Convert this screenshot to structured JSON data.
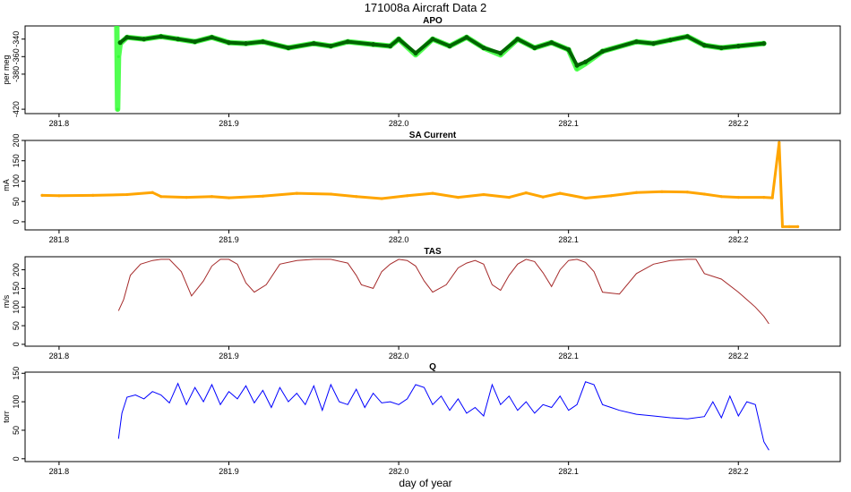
{
  "figure": {
    "title": "171008a   Aircraft Data 2",
    "xlabel": "day of year"
  },
  "chart_data": [
    {
      "type": "scatter",
      "title": "APO",
      "ylabel": "per meg",
      "xlim": [
        281.78,
        282.26
      ],
      "ylim": [
        -425,
        -325
      ],
      "xticks": [
        281.8,
        281.9,
        282.0,
        282.1,
        282.2
      ],
      "yticks": [
        -340,
        -360,
        -380,
        -420
      ],
      "series": [
        {
          "color": "#33ff33",
          "style": "raw",
          "x": [
            281.834,
            281.8345,
            281.835,
            281.836,
            281.84,
            281.85,
            281.86,
            281.87,
            281.88,
            281.89,
            281.9,
            281.91,
            281.92,
            281.935,
            281.95,
            281.96,
            281.97,
            281.985,
            281.995,
            282.0,
            282.01,
            282.02,
            282.03,
            282.04,
            282.05,
            282.06,
            282.07,
            282.08,
            282.09,
            282.1,
            282.105,
            282.11,
            282.12,
            282.14,
            282.15,
            282.16,
            282.17,
            282.18,
            282.19,
            282.2,
            282.215
          ],
          "y": [
            -325,
            -420,
            -360,
            -345,
            -338,
            -340,
            -337,
            -340,
            -343,
            -338,
            -344,
            -345,
            -343,
            -350,
            -345,
            -348,
            -343,
            -346,
            -348,
            -340,
            -358,
            -340,
            -348,
            -338,
            -350,
            -358,
            -340,
            -350,
            -344,
            -352,
            -374,
            -368,
            -354,
            -343,
            -345,
            -341,
            -337,
            -347,
            -350,
            -348,
            -345
          ]
        },
        {
          "color": "#006400",
          "style": "averaged",
          "x": [
            281.836,
            281.84,
            281.85,
            281.86,
            281.87,
            281.88,
            281.89,
            281.9,
            281.91,
            281.92,
            281.935,
            281.95,
            281.96,
            281.97,
            281.985,
            281.995,
            282.0,
            282.01,
            282.02,
            282.03,
            282.04,
            282.05,
            282.06,
            282.07,
            282.08,
            282.09,
            282.1,
            282.105,
            282.11,
            282.12,
            282.14,
            282.15,
            282.16,
            282.17,
            282.18,
            282.19,
            282.2,
            282.215
          ],
          "y": [
            -344,
            -338,
            -340,
            -337,
            -340,
            -343,
            -338,
            -344,
            -345,
            -343,
            -350,
            -345,
            -348,
            -343,
            -346,
            -348,
            -340,
            -356,
            -340,
            -348,
            -338,
            -350,
            -356,
            -340,
            -350,
            -344,
            -352,
            -370,
            -366,
            -354,
            -343,
            -345,
            -341,
            -337,
            -347,
            -350,
            -348,
            -345
          ]
        }
      ]
    },
    {
      "type": "scatter",
      "title": "SA Current",
      "ylabel": "mA",
      "xlim": [
        281.78,
        282.26
      ],
      "ylim": [
        -20,
        200
      ],
      "xticks": [
        281.8,
        281.9,
        282.0,
        282.1,
        282.2
      ],
      "yticks": [
        0,
        50,
        100,
        150,
        200
      ],
      "series": [
        {
          "color": "#ffa500",
          "x": [
            281.79,
            281.8,
            281.82,
            281.84,
            281.855,
            281.86,
            281.875,
            281.89,
            281.9,
            281.92,
            281.94,
            281.96,
            281.975,
            281.99,
            282.005,
            282.02,
            282.035,
            282.05,
            282.065,
            282.075,
            282.085,
            282.095,
            282.11,
            282.125,
            282.14,
            282.155,
            282.17,
            282.18,
            282.19,
            282.2,
            282.215,
            282.22,
            282.224,
            282.226,
            282.23,
            282.235
          ],
          "y": [
            65,
            64,
            65,
            67,
            72,
            62,
            60,
            62,
            59,
            63,
            70,
            68,
            62,
            57,
            64,
            70,
            60,
            67,
            60,
            71,
            61,
            70,
            58,
            64,
            72,
            74,
            73,
            68,
            62,
            60,
            60,
            59,
            195,
            -12,
            -12,
            -12
          ]
        }
      ]
    },
    {
      "type": "line",
      "title": "TAS",
      "ylabel": "m/s",
      "xlim": [
        281.78,
        282.26
      ],
      "ylim": [
        -5,
        235
      ],
      "xticks": [
        281.8,
        281.9,
        282.0,
        282.1,
        282.2
      ],
      "yticks": [
        0,
        50,
        100,
        150,
        200
      ],
      "series": [
        {
          "color": "#a52a2a",
          "x": [
            281.835,
            281.838,
            281.842,
            281.848,
            281.855,
            281.86,
            281.865,
            281.872,
            281.878,
            281.885,
            281.89,
            281.895,
            281.9,
            281.905,
            281.91,
            281.915,
            281.922,
            281.93,
            281.94,
            281.95,
            281.96,
            281.97,
            281.975,
            281.978,
            281.985,
            281.99,
            281.995,
            282.0,
            282.005,
            282.01,
            282.015,
            282.02,
            282.028,
            282.035,
            282.04,
            282.045,
            282.05,
            282.055,
            282.06,
            282.065,
            282.07,
            282.075,
            282.08,
            282.085,
            282.09,
            282.095,
            282.1,
            282.105,
            282.11,
            282.115,
            282.12,
            282.13,
            282.14,
            282.15,
            282.16,
            282.17,
            282.175,
            282.18,
            282.19,
            282.2,
            282.205,
            282.21,
            282.215,
            282.218
          ],
          "y": [
            90,
            120,
            185,
            215,
            225,
            228,
            228,
            195,
            130,
            170,
            210,
            228,
            228,
            215,
            165,
            140,
            160,
            215,
            225,
            228,
            228,
            218,
            185,
            160,
            150,
            195,
            215,
            228,
            225,
            210,
            170,
            140,
            160,
            205,
            218,
            225,
            215,
            160,
            145,
            185,
            215,
            228,
            222,
            192,
            155,
            200,
            225,
            228,
            220,
            195,
            140,
            135,
            190,
            215,
            225,
            228,
            228,
            190,
            175,
            140,
            120,
            100,
            75,
            55
          ]
        }
      ]
    },
    {
      "type": "line",
      "title": "Q",
      "ylabel": "torr",
      "xlim": [
        281.78,
        282.26
      ],
      "ylim": [
        -5,
        152
      ],
      "xticks": [
        281.8,
        281.9,
        282.0,
        282.1,
        282.2
      ],
      "yticks": [
        0,
        50,
        100,
        150
      ],
      "series": [
        {
          "color": "#0000ff",
          "x": [
            281.835,
            281.837,
            281.84,
            281.845,
            281.85,
            281.855,
            281.86,
            281.865,
            281.87,
            281.875,
            281.88,
            281.885,
            281.89,
            281.895,
            281.9,
            281.905,
            281.91,
            281.915,
            281.92,
            281.925,
            281.93,
            281.935,
            281.94,
            281.945,
            281.95,
            281.955,
            281.96,
            281.965,
            281.97,
            281.975,
            281.98,
            281.985,
            281.99,
            281.995,
            282.0,
            282.005,
            282.01,
            282.015,
            282.02,
            282.025,
            282.03,
            282.035,
            282.04,
            282.045,
            282.05,
            282.055,
            282.06,
            282.065,
            282.07,
            282.075,
            282.08,
            282.085,
            282.09,
            282.095,
            282.1,
            282.105,
            282.11,
            282.115,
            282.12,
            282.125,
            282.13,
            282.14,
            282.15,
            282.16,
            282.17,
            282.18,
            282.185,
            282.19,
            282.195,
            282.2,
            282.205,
            282.21,
            282.215,
            282.218
          ],
          "y": [
            35,
            80,
            108,
            112,
            105,
            118,
            112,
            98,
            132,
            95,
            125,
            100,
            130,
            95,
            118,
            105,
            128,
            98,
            120,
            90,
            125,
            100,
            115,
            95,
            128,
            85,
            130,
            100,
            95,
            122,
            90,
            115,
            98,
            100,
            95,
            105,
            130,
            125,
            95,
            110,
            85,
            105,
            80,
            90,
            75,
            130,
            95,
            110,
            85,
            100,
            80,
            95,
            90,
            110,
            85,
            95,
            135,
            130,
            95,
            90,
            85,
            78,
            75,
            72,
            70,
            74,
            100,
            72,
            110,
            75,
            100,
            95,
            30,
            15
          ]
        }
      ]
    }
  ]
}
